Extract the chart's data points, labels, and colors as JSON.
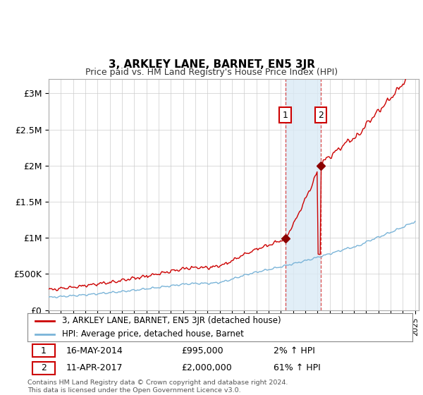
{
  "title": "3, ARKLEY LANE, BARNET, EN5 3JR",
  "subtitle": "Price paid vs. HM Land Registry's House Price Index (HPI)",
  "ylabel_ticks": [
    "£0",
    "£500K",
    "£1M",
    "£1.5M",
    "£2M",
    "£2.5M",
    "£3M"
  ],
  "ytick_values": [
    0,
    500000,
    1000000,
    1500000,
    2000000,
    2500000,
    3000000
  ],
  "ylim": [
    0,
    3200000
  ],
  "x_start_year": 1995,
  "x_end_year": 2025,
  "sale1_date": 2014.37,
  "sale1_price": 995000,
  "sale1_label": "1",
  "sale2_date": 2017.27,
  "sale2_price": 2000000,
  "sale2_label": "2",
  "hpi_color": "#7ab4d8",
  "price_color": "#cc0000",
  "annotation_box_color": "#cc0000",
  "shaded_region_color": "#daeaf5",
  "legend_label_property": "3, ARKLEY LANE, BARNET, EN5 3JR (detached house)",
  "legend_label_hpi": "HPI: Average price, detached house, Barnet",
  "table_row1": [
    "1",
    "16-MAY-2014",
    "£995,000",
    "2% ↑ HPI"
  ],
  "table_row2": [
    "2",
    "11-APR-2017",
    "£2,000,000",
    "61% ↑ HPI"
  ],
  "footer": "Contains HM Land Registry data © Crown copyright and database right 2024.\nThis data is licensed under the Open Government Licence v3.0.",
  "background_color": "#ffffff"
}
